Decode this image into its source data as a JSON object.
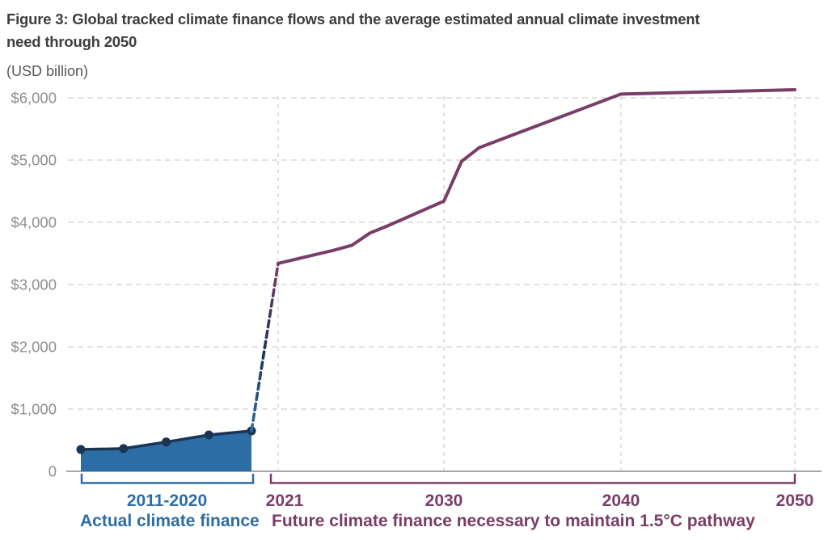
{
  "figure": {
    "title": "Figure 3: Global tracked climate finance flows and the average estimated annual climate investment need through 2050",
    "unit_label": "(USD billion)"
  },
  "colors": {
    "actual_blue": "#2d6da5",
    "actual_navy": "#1a3553",
    "future_purple": "#7a3d68",
    "grid": "#d9d9d9",
    "axis": "#a8a8a8",
    "y_tick_text": "#8f8f8f",
    "title_text": "#3d3d3d",
    "subtitle_text": "#585858"
  },
  "chart_data": {
    "type": "line",
    "title": "Figure 3: Global tracked climate finance flows and the average estimated annual climate investment need through 2050",
    "ylabel": "(USD billion)",
    "ylim": [
      0,
      6000
    ],
    "grid": "dashed horizontal at each $1,000; dashed vertical at 2021, 2030, 2040, 2050",
    "legend_position": "bottom",
    "y_ticks": [
      {
        "value": 0,
        "label": "0"
      },
      {
        "value": 1000,
        "label": "$1,000"
      },
      {
        "value": 2000,
        "label": "$2,000"
      },
      {
        "value": 3000,
        "label": "$3,000"
      },
      {
        "value": 4000,
        "label": "$4,000"
      },
      {
        "value": 5000,
        "label": "$5,000"
      },
      {
        "value": 6000,
        "label": "$6,000"
      }
    ],
    "x_ticks_future": [
      {
        "year": 2021,
        "label": "2021"
      },
      {
        "year": 2030,
        "label": "2030"
      },
      {
        "year": 2040,
        "label": "2040"
      },
      {
        "year": 2050,
        "label": "2050"
      }
    ],
    "series": [
      {
        "name": "Actual climate finance",
        "style": "area-with-dots",
        "fill_color": "#2d6da5",
        "line_color": "#1a3553",
        "categories": [
          "2011/12",
          "2013/14",
          "2015/16",
          "2017/18",
          "2019/20"
        ],
        "values": [
          350,
          365,
          470,
          585,
          650
        ],
        "bracket_label": "2011-2020"
      },
      {
        "name": "Future climate finance necessary to maintain 1.5°C pathway",
        "style": "solid-line",
        "line_color": "#7a3d68",
        "x": [
          2021,
          2022,
          2023,
          2024,
          2025,
          2026,
          2027,
          2028,
          2029,
          2030,
          2031,
          2032,
          2034,
          2036,
          2038,
          2040,
          2045,
          2050
        ],
        "values": [
          3340,
          3410,
          3480,
          3550,
          3630,
          3830,
          3950,
          4080,
          4210,
          4340,
          4980,
          5200,
          5415,
          5630,
          5845,
          6060,
          6095,
          6130
        ]
      }
    ],
    "connector": {
      "style": "dashed",
      "from": {
        "category": "2019/20",
        "value": 650
      },
      "to": {
        "year": 2021,
        "value": 3340
      }
    },
    "legend": [
      {
        "label": "Actual climate finance",
        "color": "#2d6da5"
      },
      {
        "label": "Future climate finance necessary to maintain 1.5°C pathway",
        "color": "#7a3d68"
      }
    ]
  }
}
